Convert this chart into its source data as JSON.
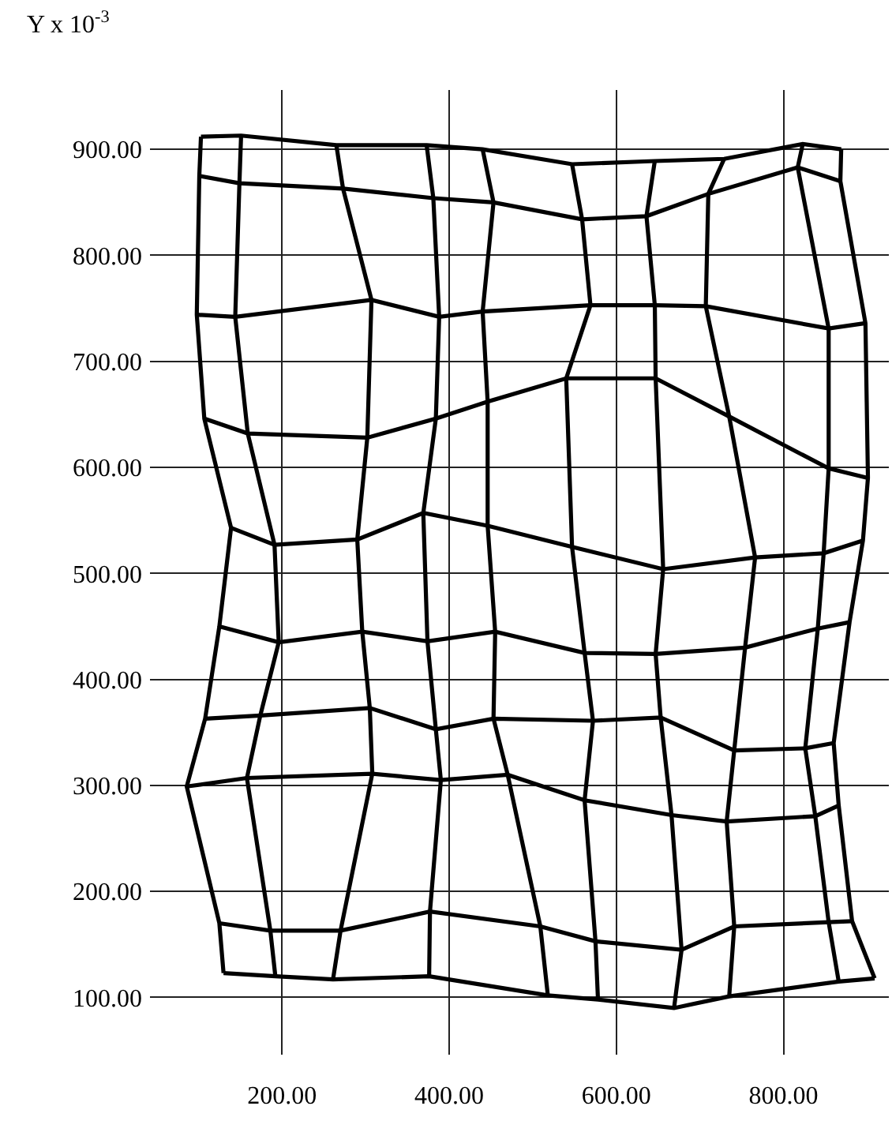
{
  "chart_data": {
    "type": "line",
    "ylabel": "Y x 10$^{-3}$",
    "xlim": [
      42,
      926
    ],
    "ylim": [
      46,
      956
    ],
    "xticks": [
      {
        "value": 200,
        "label": "200.00"
      },
      {
        "value": 400,
        "label": "400.00"
      },
      {
        "value": 600,
        "label": "600.00"
      },
      {
        "value": 800,
        "label": "800.00"
      }
    ],
    "yticks": [
      {
        "value": 100,
        "label": "100.00"
      },
      {
        "value": 200,
        "label": "200.00"
      },
      {
        "value": 300,
        "label": "300.00"
      },
      {
        "value": 400,
        "label": "400.00"
      },
      {
        "value": 500,
        "label": "500.00"
      },
      {
        "value": 600,
        "label": "600.00"
      },
      {
        "value": 700,
        "label": "700.00"
      },
      {
        "value": 800,
        "label": "800.00"
      },
      {
        "value": 900,
        "label": "900.00"
      }
    ],
    "grid": true,
    "marker": "none",
    "line_style": "solid",
    "series": [
      {
        "color": "#000000",
        "x": [
          103,
          151,
          265,
          373,
          440,
          547,
          646,
          729,
          823,
          869
        ],
        "values": [
          912,
          913,
          904,
          904,
          900,
          886,
          889,
          891,
          905,
          900
        ]
      },
      {
        "color": "#000000",
        "x": [
          101,
          149,
          273,
          381,
          453,
          559,
          636,
          710,
          817,
          868
        ],
        "values": [
          875,
          868,
          863,
          854,
          850,
          834,
          837,
          858,
          883,
          870
        ]
      },
      {
        "color": "#000000",
        "x": [
          98,
          144,
          307,
          388,
          440,
          569,
          646,
          707,
          854,
          898
        ],
        "values": [
          744,
          742,
          758,
          742,
          747,
          753,
          753,
          752,
          731,
          736
        ]
      },
      {
        "color": "#000000",
        "x": [
          107,
          159,
          302,
          384,
          446,
          540,
          647,
          735,
          854,
          901
        ],
        "values": [
          646,
          632,
          628,
          646,
          662,
          684,
          684,
          648,
          599,
          590
        ]
      },
      {
        "color": "#000000",
        "x": [
          139,
          191,
          290,
          369,
          446,
          547,
          656,
          766,
          848,
          895
        ],
        "values": [
          543,
          527,
          532,
          557,
          545,
          525,
          504,
          515,
          519,
          531
        ]
      },
      {
        "color": "#000000",
        "x": [
          125,
          196,
          296,
          374,
          455,
          562,
          647,
          754,
          841,
          879
        ],
        "values": [
          450,
          435,
          445,
          436,
          445,
          425,
          424,
          430,
          448,
          454
        ]
      },
      {
        "color": "#000000",
        "x": [
          108,
          174,
          305,
          384,
          453,
          572,
          653,
          741,
          826,
          860
        ],
        "values": [
          363,
          366,
          373,
          353,
          363,
          361,
          364,
          333,
          335,
          340
        ]
      },
      {
        "color": "#000000",
        "x": [
          86,
          158,
          308,
          390,
          470,
          562,
          666,
          732,
          838,
          866
        ],
        "values": [
          299,
          307,
          311,
          305,
          310,
          286,
          272,
          266,
          271,
          281
        ]
      },
      {
        "color": "#000000",
        "x": [
          125,
          186,
          270,
          377,
          509,
          575,
          678,
          741,
          854,
          882
        ],
        "values": [
          170,
          163,
          163,
          181,
          167,
          153,
          145,
          167,
          171,
          172
        ]
      },
      {
        "color": "#000000",
        "x": [
          130,
          192,
          261,
          376,
          518,
          578,
          669,
          735,
          866,
          909
        ],
        "values": [
          123,
          120,
          117,
          120,
          102,
          98,
          90,
          101,
          115,
          118
        ]
      },
      {
        "color": "#000000",
        "x": [
          103,
          101,
          98,
          107,
          139,
          125,
          108,
          86,
          125,
          130
        ],
        "values": [
          912,
          875,
          744,
          646,
          543,
          450,
          363,
          299,
          170,
          123
        ]
      },
      {
        "color": "#000000",
        "x": [
          151,
          149,
          144,
          159,
          191,
          196,
          174,
          158,
          186,
          192
        ],
        "values": [
          913,
          868,
          742,
          632,
          527,
          435,
          366,
          307,
          163,
          120
        ]
      },
      {
        "color": "#000000",
        "x": [
          265,
          273,
          307,
          302,
          290,
          296,
          305,
          308,
          270,
          261
        ],
        "values": [
          904,
          863,
          758,
          628,
          532,
          445,
          373,
          311,
          163,
          117
        ]
      },
      {
        "color": "#000000",
        "x": [
          373,
          381,
          388,
          384,
          369,
          374,
          384,
          390,
          377,
          376
        ],
        "values": [
          904,
          854,
          742,
          646,
          557,
          436,
          353,
          305,
          181,
          120
        ]
      },
      {
        "color": "#000000",
        "x": [
          440,
          453,
          440,
          446,
          446,
          455,
          453,
          470,
          509,
          518
        ],
        "values": [
          900,
          850,
          747,
          662,
          545,
          445,
          363,
          310,
          167,
          102
        ]
      },
      {
        "color": "#000000",
        "x": [
          547,
          559,
          569,
          540,
          547,
          562,
          572,
          562,
          575,
          578
        ],
        "values": [
          886,
          834,
          753,
          684,
          525,
          425,
          361,
          286,
          153,
          98
        ]
      },
      {
        "color": "#000000",
        "x": [
          646,
          636,
          646,
          647,
          656,
          647,
          653,
          666,
          678,
          669
        ],
        "values": [
          889,
          837,
          753,
          684,
          504,
          424,
          364,
          272,
          145,
          90
        ]
      },
      {
        "color": "#000000",
        "x": [
          729,
          710,
          707,
          735,
          766,
          754,
          741,
          732,
          741,
          735
        ],
        "values": [
          891,
          858,
          752,
          648,
          515,
          430,
          333,
          266,
          167,
          101
        ]
      },
      {
        "color": "#000000",
        "x": [
          823,
          817,
          854,
          854,
          848,
          841,
          826,
          838,
          854,
          866
        ],
        "values": [
          905,
          883,
          731,
          599,
          519,
          448,
          335,
          271,
          171,
          115
        ]
      },
      {
        "color": "#000000",
        "x": [
          869,
          868,
          898,
          901,
          895,
          879,
          860,
          866,
          882,
          909
        ],
        "values": [
          900,
          870,
          736,
          590,
          531,
          454,
          340,
          281,
          172,
          118
        ]
      }
    ]
  }
}
